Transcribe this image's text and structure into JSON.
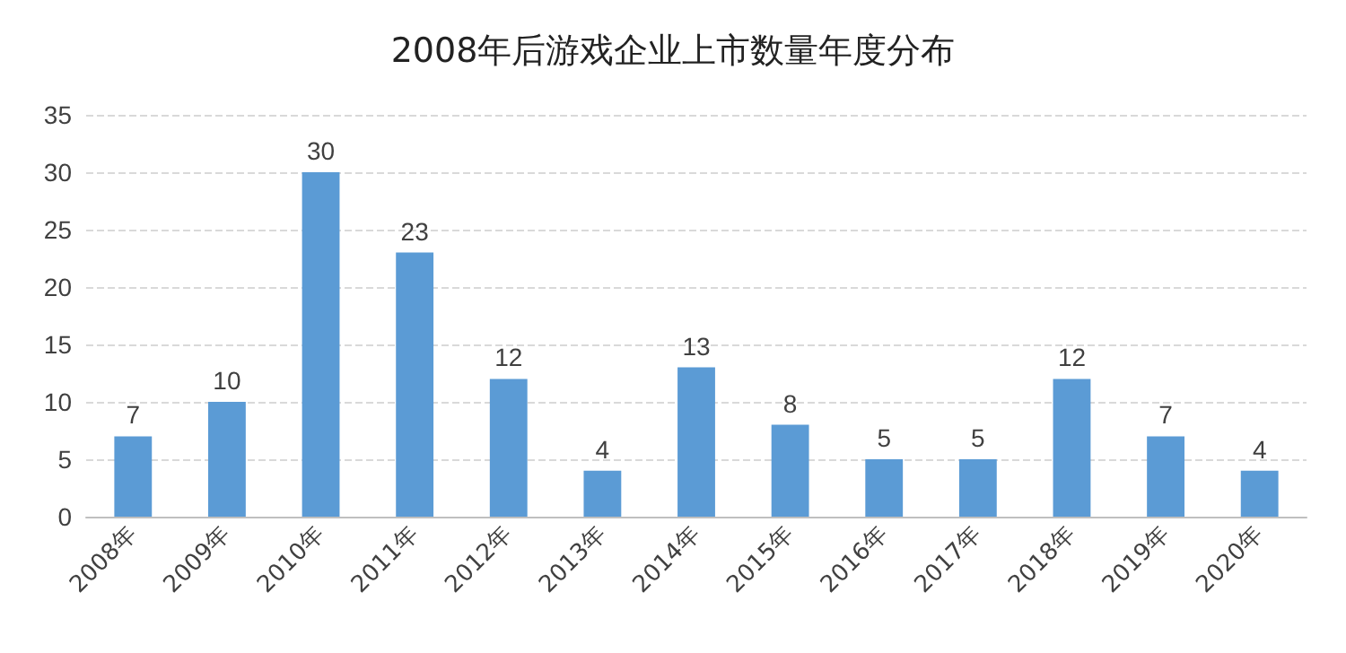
{
  "chart_data": {
    "type": "bar",
    "title": "2008年后游戏企业上市数量年度分布",
    "categories": [
      "2008年",
      "2009年",
      "2010年",
      "2011年",
      "2012年",
      "2013年",
      "2014年",
      "2015年",
      "2016年",
      "2017年",
      "2018年",
      "2019年",
      "2020年"
    ],
    "values": [
      7,
      10,
      30,
      23,
      12,
      4,
      13,
      8,
      5,
      5,
      12,
      7,
      4
    ],
    "color": "#5b9bd5",
    "ylim": [
      0,
      35
    ],
    "yticks": [
      0,
      5,
      10,
      15,
      20,
      25,
      30,
      35
    ],
    "grid": "y",
    "data_labels": true
  }
}
